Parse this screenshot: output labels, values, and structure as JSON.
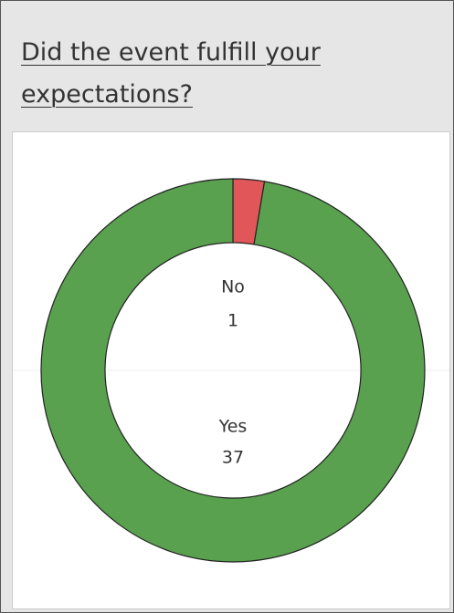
{
  "chart_data": {
    "type": "donut",
    "title": "Did the event fulfill your expectations?",
    "categories": [
      "No",
      "Yes"
    ],
    "values": [
      1,
      37
    ],
    "colors": [
      "#e15759",
      "#59a14f"
    ]
  }
}
